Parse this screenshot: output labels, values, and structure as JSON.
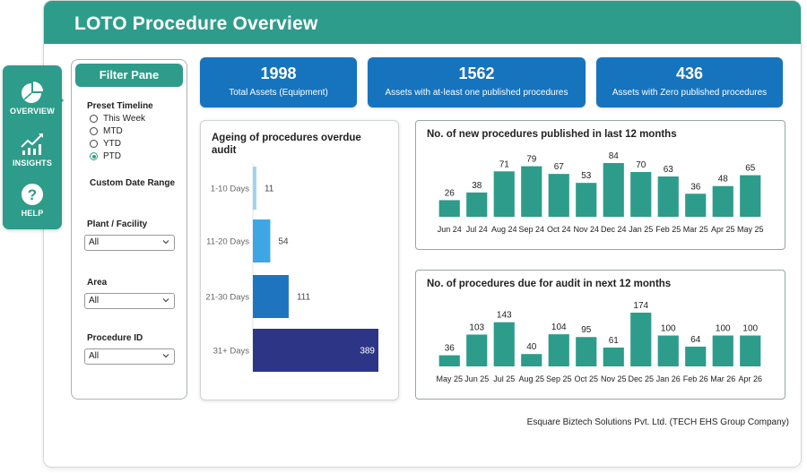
{
  "header": {
    "title": "LOTO Procedure Overview"
  },
  "nav": {
    "items": [
      {
        "label": "OVERVIEW",
        "icon": "pie-chart-icon",
        "active": true
      },
      {
        "label": "INSIGHTS",
        "icon": "trend-chart-icon",
        "active": false
      },
      {
        "label": "HELP",
        "icon": "help-icon",
        "active": false
      }
    ]
  },
  "filter_pane": {
    "title": "Filter Pane",
    "preset_label": "Preset Timeline",
    "options": [
      "This Week",
      "MTD",
      "YTD",
      "PTD"
    ],
    "selected": "PTD",
    "custom_date_label": "Custom Date Range",
    "plant_label": "Plant / Facility",
    "plant_value": "All",
    "area_label": "Area",
    "area_value": "All",
    "procedure_label": "Procedure ID",
    "procedure_value": "All"
  },
  "kpis": [
    {
      "value": "1998",
      "label": "Total Assets (Equipment)"
    },
    {
      "value": "1562",
      "label": "Assets with at-least one published procedures"
    },
    {
      "value": "436",
      "label": "Assets with Zero published procedures"
    }
  ],
  "colors": {
    "teal": "#2e9c8a",
    "kpi_blue": "#1673be",
    "ageing": [
      "#9fd4f1",
      "#3ea6e4",
      "#1f74c0",
      "#2d3587"
    ]
  },
  "chart_data": [
    {
      "type": "bar",
      "orientation": "horizontal",
      "title": "Ageing of procedures overdue audit",
      "categories": [
        "1-10 Days",
        "11-20 Days",
        "21-30 Days",
        "31+ Days"
      ],
      "values": [
        11,
        54,
        111,
        389
      ],
      "xlim": [
        0,
        389
      ]
    },
    {
      "type": "bar",
      "title": "No. of new procedures published in last 12 months",
      "categories": [
        "Jun 24",
        "Jul 24",
        "Aug 24",
        "Sep 24",
        "Oct 24",
        "Nov 24",
        "Dec 24",
        "Jan 25",
        "Feb 25",
        "Mar 25",
        "Apr 25",
        "May 25"
      ],
      "values": [
        26,
        38,
        71,
        79,
        67,
        53,
        84,
        70,
        63,
        36,
        48,
        65
      ],
      "ylim": [
        0,
        84
      ]
    },
    {
      "type": "bar",
      "title": "No. of procedures due for audit in next 12 months",
      "categories": [
        "May 25",
        "Jun 25",
        "Jul 25",
        "Aug 25",
        "Sep 25",
        "Oct 25",
        "Nov 25",
        "Dec 25",
        "Jan 26",
        "Feb 26",
        "Mar 26",
        "Apr 26"
      ],
      "values": [
        36,
        103,
        143,
        40,
        104,
        95,
        61,
        174,
        100,
        64,
        100,
        100
      ],
      "ylim": [
        0,
        174
      ]
    }
  ],
  "footer": {
    "text": "Esquare Biztech Solutions Pvt. Ltd. (TECH EHS Group Company)"
  }
}
